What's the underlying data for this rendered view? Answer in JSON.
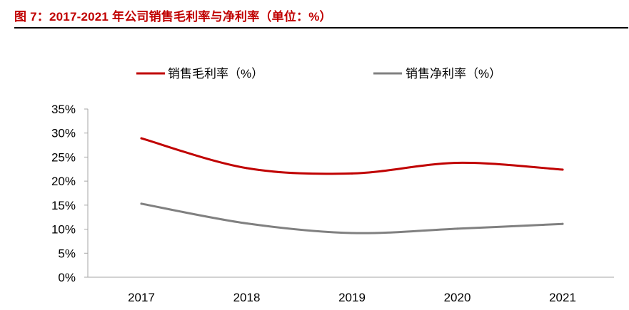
{
  "figure": {
    "title": "图 7：2017-2021 年公司销售毛利率与净利率（单位：%）"
  },
  "chart_data": {
    "type": "line",
    "categories": [
      "2017",
      "2018",
      "2019",
      "2020",
      "2021"
    ],
    "series": [
      {
        "name": "销售毛利率（%）",
        "color": "#c00000",
        "values": [
          28.9,
          22.7,
          21.6,
          23.8,
          22.4
        ]
      },
      {
        "name": "销售净利率（%）",
        "color": "#808080",
        "values": [
          15.3,
          11.2,
          9.2,
          10.1,
          11.1
        ]
      }
    ],
    "y_ticks": [
      "0%",
      "5%",
      "10%",
      "15%",
      "20%",
      "25%",
      "30%",
      "35%"
    ],
    "ylim": [
      0,
      35
    ],
    "grid": false,
    "legend_position": "top"
  }
}
